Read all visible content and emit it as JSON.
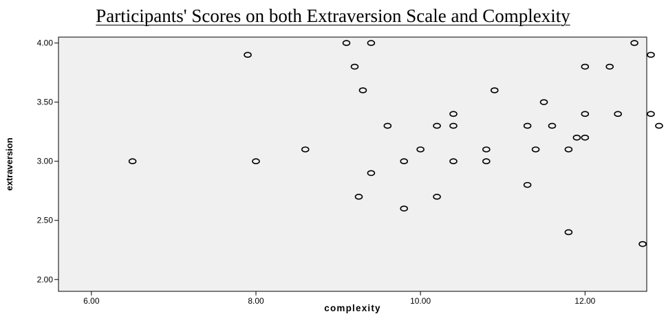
{
  "chart_data": {
    "type": "scatter",
    "title": "Participants' Scores on both Extraversion Scale and Complexity",
    "xlabel": "complexity",
    "ylabel": "extraversion",
    "xlim": [
      5.6,
      12.75
    ],
    "ylim": [
      1.9,
      4.05
    ],
    "xticks": [
      "6.00",
      "8.00",
      "10.00",
      "12.00"
    ],
    "xtick_values": [
      6,
      8,
      10,
      12
    ],
    "yticks": [
      "2.00",
      "2.50",
      "3.00",
      "3.50",
      "4.00"
    ],
    "ytick_values": [
      2.0,
      2.5,
      3.0,
      3.5,
      4.0
    ],
    "grid": false,
    "background_color": "#f0f0f0",
    "marker_color": "#000000",
    "points": [
      {
        "x": 6.5,
        "y": 3.0
      },
      {
        "x": 7.9,
        "y": 3.9
      },
      {
        "x": 8.0,
        "y": 3.0
      },
      {
        "x": 8.6,
        "y": 3.1
      },
      {
        "x": 9.1,
        "y": 4.0
      },
      {
        "x": 9.4,
        "y": 4.0
      },
      {
        "x": 9.2,
        "y": 3.8
      },
      {
        "x": 9.3,
        "y": 3.6
      },
      {
        "x": 9.6,
        "y": 3.3
      },
      {
        "x": 9.8,
        "y": 3.0
      },
      {
        "x": 9.4,
        "y": 2.9
      },
      {
        "x": 9.25,
        "y": 2.7
      },
      {
        "x": 9.8,
        "y": 2.6
      },
      {
        "x": 10.0,
        "y": 3.1
      },
      {
        "x": 10.2,
        "y": 3.3
      },
      {
        "x": 10.2,
        "y": 2.7
      },
      {
        "x": 10.4,
        "y": 3.4
      },
      {
        "x": 10.4,
        "y": 3.3
      },
      {
        "x": 10.4,
        "y": 3.0
      },
      {
        "x": 10.8,
        "y": 3.1
      },
      {
        "x": 10.8,
        "y": 3.0
      },
      {
        "x": 10.9,
        "y": 3.6
      },
      {
        "x": 11.3,
        "y": 3.3
      },
      {
        "x": 11.3,
        "y": 2.8
      },
      {
        "x": 11.4,
        "y": 3.1
      },
      {
        "x": 11.5,
        "y": 3.5
      },
      {
        "x": 11.6,
        "y": 3.3
      },
      {
        "x": 11.8,
        "y": 3.1
      },
      {
        "x": 11.8,
        "y": 2.4
      },
      {
        "x": 11.9,
        "y": 3.2
      },
      {
        "x": 12.0,
        "y": 3.2
      },
      {
        "x": 12.0,
        "y": 3.4
      },
      {
        "x": 12.0,
        "y": 3.8
      },
      {
        "x": 12.3,
        "y": 3.8
      },
      {
        "x": 12.4,
        "y": 3.4
      },
      {
        "x": 12.6,
        "y": 4.0
      },
      {
        "x": 12.8,
        "y": 3.9
      },
      {
        "x": 12.8,
        "y": 3.4
      },
      {
        "x": 12.9,
        "y": 3.3
      },
      {
        "x": 12.7,
        "y": 2.3
      }
    ]
  }
}
